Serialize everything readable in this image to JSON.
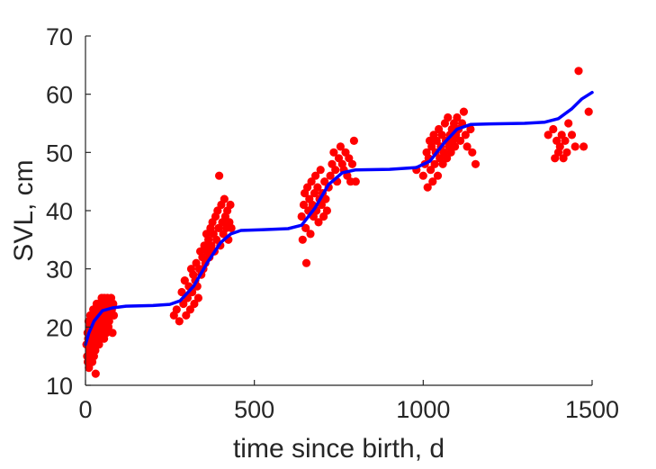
{
  "chart_data": {
    "type": "scatter",
    "title": "",
    "xlabel": "time since birth, d",
    "ylabel": "SVL, cm",
    "xlim": [
      0,
      1500
    ],
    "ylim": [
      10,
      70
    ],
    "xticks": [
      0,
      500,
      1000,
      1500
    ],
    "yticks": [
      10,
      20,
      30,
      40,
      50,
      60,
      70
    ],
    "xtick_labels": [
      "0",
      "500",
      "1000",
      "1500"
    ],
    "ytick_labels": [
      "10",
      "20",
      "30",
      "40",
      "50",
      "60",
      "70"
    ],
    "grid": false,
    "legend": "none",
    "colors": {
      "points": "#ff0000",
      "fit": "#0000ff",
      "axes": "#262626"
    },
    "series": [
      {
        "kind": "scatter",
        "points": [
          [
            3,
            17
          ],
          [
            5,
            15
          ],
          [
            6,
            19
          ],
          [
            7,
            14
          ],
          [
            8,
            18
          ],
          [
            9,
            21
          ],
          [
            10,
            13
          ],
          [
            11,
            16
          ],
          [
            12,
            20
          ],
          [
            13,
            17
          ],
          [
            14,
            22
          ],
          [
            15,
            15
          ],
          [
            16,
            19
          ],
          [
            17,
            18
          ],
          [
            18,
            21
          ],
          [
            19,
            16
          ],
          [
            20,
            14
          ],
          [
            21,
            20
          ],
          [
            22,
            17
          ],
          [
            23,
            23
          ],
          [
            24,
            18
          ],
          [
            25,
            15
          ],
          [
            26,
            21
          ],
          [
            27,
            19
          ],
          [
            28,
            22
          ],
          [
            29,
            16
          ],
          [
            30,
            12
          ],
          [
            31,
            20
          ],
          [
            32,
            17
          ],
          [
            33,
            24
          ],
          [
            34,
            18
          ],
          [
            35,
            21
          ],
          [
            36,
            19
          ],
          [
            37,
            23
          ],
          [
            38,
            20
          ],
          [
            39,
            22
          ],
          [
            40,
            17
          ],
          [
            41,
            24
          ],
          [
            42,
            19
          ],
          [
            43,
            21
          ],
          [
            44,
            18
          ],
          [
            45,
            23
          ],
          [
            46,
            20
          ],
          [
            47,
            22
          ],
          [
            48,
            25
          ],
          [
            49,
            19
          ],
          [
            50,
            21
          ],
          [
            51,
            23
          ],
          [
            52,
            20
          ],
          [
            53,
            24
          ],
          [
            54,
            22
          ],
          [
            55,
            18
          ],
          [
            56,
            25
          ],
          [
            57,
            21
          ],
          [
            58,
            23
          ],
          [
            59,
            20
          ],
          [
            60,
            24
          ],
          [
            61,
            22
          ],
          [
            62,
            19
          ],
          [
            63,
            23
          ],
          [
            64,
            21
          ],
          [
            65,
            25
          ],
          [
            66,
            22
          ],
          [
            67,
            24
          ],
          [
            68,
            20
          ],
          [
            69,
            23
          ],
          [
            70,
            21
          ],
          [
            72,
            24
          ],
          [
            74,
            22
          ],
          [
            76,
            25
          ],
          [
            78,
            23
          ],
          [
            80,
            19
          ],
          [
            82,
            24
          ],
          [
            84,
            22
          ],
          [
            262,
            22
          ],
          [
            270,
            23
          ],
          [
            278,
            21
          ],
          [
            285,
            26
          ],
          [
            290,
            24
          ],
          [
            294,
            28
          ],
          [
            298,
            22
          ],
          [
            302,
            25
          ],
          [
            306,
            27
          ],
          [
            310,
            23
          ],
          [
            313,
            30
          ],
          [
            316,
            26
          ],
          [
            319,
            29
          ],
          [
            322,
            24
          ],
          [
            325,
            28
          ],
          [
            328,
            31
          ],
          [
            331,
            27
          ],
          [
            334,
            25
          ],
          [
            337,
            30
          ],
          [
            340,
            33
          ],
          [
            343,
            29
          ],
          [
            346,
            32
          ],
          [
            349,
            30
          ],
          [
            352,
            34
          ],
          [
            355,
            31
          ],
          [
            358,
            36
          ],
          [
            361,
            33
          ],
          [
            364,
            35
          ],
          [
            367,
            32
          ],
          [
            370,
            37
          ],
          [
            373,
            34
          ],
          [
            376,
            38
          ],
          [
            379,
            36
          ],
          [
            382,
            33
          ],
          [
            385,
            39
          ],
          [
            388,
            35
          ],
          [
            391,
            40
          ],
          [
            394,
            37
          ],
          [
            396,
            46
          ],
          [
            399,
            34
          ],
          [
            402,
            41
          ],
          [
            405,
            38
          ],
          [
            408,
            36
          ],
          [
            411,
            42
          ],
          [
            414,
            39
          ],
          [
            417,
            37
          ],
          [
            420,
            40
          ],
          [
            423,
            35
          ],
          [
            426,
            38
          ],
          [
            429,
            41
          ],
          [
            432,
            37
          ],
          [
            640,
            39
          ],
          [
            643,
            35
          ],
          [
            646,
            41
          ],
          [
            649,
            43
          ],
          [
            652,
            37
          ],
          [
            654,
            31
          ],
          [
            657,
            44
          ],
          [
            660,
            40
          ],
          [
            663,
            42
          ],
          [
            666,
            36
          ],
          [
            669,
            45
          ],
          [
            672,
            41
          ],
          [
            675,
            39
          ],
          [
            678,
            43
          ],
          [
            681,
            46
          ],
          [
            684,
            40
          ],
          [
            687,
            44
          ],
          [
            690,
            38
          ],
          [
            693,
            42
          ],
          [
            696,
            47
          ],
          [
            699,
            41
          ],
          [
            702,
            43
          ],
          [
            705,
            39
          ],
          [
            708,
            45
          ],
          [
            711,
            42
          ],
          [
            715,
            40
          ],
          [
            720,
            44
          ],
          [
            725,
            46
          ],
          [
            730,
            48
          ],
          [
            735,
            50
          ],
          [
            740,
            47
          ],
          [
            745,
            45
          ],
          [
            750,
            49
          ],
          [
            755,
            51
          ],
          [
            760,
            48
          ],
          [
            765,
            47
          ],
          [
            770,
            50
          ],
          [
            775,
            46
          ],
          [
            780,
            49
          ],
          [
            785,
            45
          ],
          [
            790,
            48
          ],
          [
            795,
            52
          ],
          [
            800,
            45
          ],
          [
            980,
            47
          ],
          [
            1000,
            46
          ],
          [
            1005,
            48
          ],
          [
            1010,
            50
          ],
          [
            1013,
            44
          ],
          [
            1016,
            49
          ],
          [
            1019,
            52
          ],
          [
            1022,
            47
          ],
          [
            1025,
            51
          ],
          [
            1028,
            45
          ],
          [
            1031,
            53
          ],
          [
            1034,
            48
          ],
          [
            1037,
            50
          ],
          [
            1040,
            52
          ],
          [
            1043,
            46
          ],
          [
            1046,
            54
          ],
          [
            1049,
            49
          ],
          [
            1052,
            51
          ],
          [
            1055,
            53
          ],
          [
            1058,
            48
          ],
          [
            1061,
            50
          ],
          [
            1064,
            55
          ],
          [
            1067,
            52
          ],
          [
            1070,
            49
          ],
          [
            1073,
            56
          ],
          [
            1076,
            51
          ],
          [
            1079,
            53
          ],
          [
            1082,
            50
          ],
          [
            1085,
            54
          ],
          [
            1088,
            52
          ],
          [
            1091,
            55
          ],
          [
            1094,
            51
          ],
          [
            1097,
            53
          ],
          [
            1100,
            56
          ],
          [
            1105,
            54
          ],
          [
            1110,
            52
          ],
          [
            1115,
            55
          ],
          [
            1120,
            57
          ],
          [
            1125,
            53
          ],
          [
            1130,
            51
          ],
          [
            1140,
            54
          ],
          [
            1145,
            50
          ],
          [
            1155,
            48
          ],
          [
            1370,
            53
          ],
          [
            1385,
            54
          ],
          [
            1390,
            49
          ],
          [
            1395,
            52
          ],
          [
            1400,
            50
          ],
          [
            1405,
            51
          ],
          [
            1410,
            53
          ],
          [
            1415,
            49
          ],
          [
            1420,
            52
          ],
          [
            1425,
            50
          ],
          [
            1430,
            55
          ],
          [
            1440,
            53
          ],
          [
            1450,
            51
          ],
          [
            1460,
            64
          ],
          [
            1475,
            51
          ],
          [
            1490,
            57
          ]
        ]
      },
      {
        "kind": "line",
        "points": [
          [
            0,
            17
          ],
          [
            10,
            19
          ],
          [
            25,
            21
          ],
          [
            50,
            22.8
          ],
          [
            80,
            23.3
          ],
          [
            120,
            23.6
          ],
          [
            200,
            23.7
          ],
          [
            250,
            23.9
          ],
          [
            280,
            24.5
          ],
          [
            320,
            27
          ],
          [
            360,
            31
          ],
          [
            400,
            34.5
          ],
          [
            430,
            36
          ],
          [
            460,
            36.6
          ],
          [
            520,
            36.7
          ],
          [
            600,
            36.9
          ],
          [
            640,
            37.5
          ],
          [
            680,
            40.5
          ],
          [
            720,
            44.5
          ],
          [
            760,
            46.5
          ],
          [
            800,
            47
          ],
          [
            900,
            47.1
          ],
          [
            980,
            47.4
          ],
          [
            1020,
            48.5
          ],
          [
            1060,
            51.5
          ],
          [
            1100,
            54
          ],
          [
            1140,
            54.8
          ],
          [
            1200,
            54.9
          ],
          [
            1300,
            55
          ],
          [
            1360,
            55.2
          ],
          [
            1400,
            55.8
          ],
          [
            1440,
            57.5
          ],
          [
            1470,
            59.2
          ],
          [
            1500,
            60.3
          ]
        ]
      }
    ]
  }
}
